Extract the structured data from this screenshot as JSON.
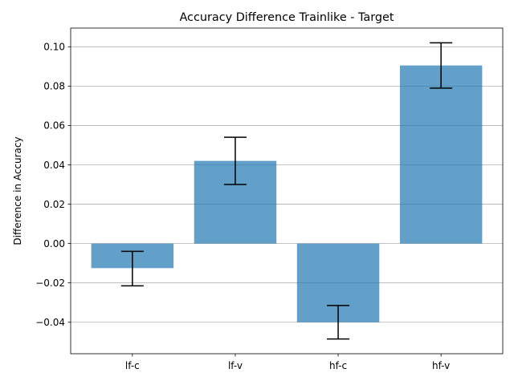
{
  "chart_data": {
    "type": "bar",
    "title": "Accuracy Difference Trainlike - Target",
    "xlabel": "",
    "ylabel": "Difference in Accuracy",
    "categories": [
      "lf-c",
      "lf-v",
      "hf-c",
      "hf-v"
    ],
    "values": [
      -0.0125,
      0.042,
      -0.04,
      0.0905
    ],
    "error_low": [
      -0.0215,
      0.03,
      -0.0485,
      0.079
    ],
    "error_high": [
      -0.004,
      0.054,
      -0.0315,
      0.102
    ],
    "ylim": [
      -0.056,
      0.1095
    ],
    "yticks": [
      -0.04,
      -0.02,
      0.0,
      0.02,
      0.04,
      0.06,
      0.08,
      0.1
    ],
    "ytick_labels": [
      "−0.04",
      "−0.02",
      "0.00",
      "0.02",
      "0.04",
      "0.06",
      "0.08",
      "0.10"
    ],
    "grid": "y",
    "bar_color": "#1f77b4"
  }
}
